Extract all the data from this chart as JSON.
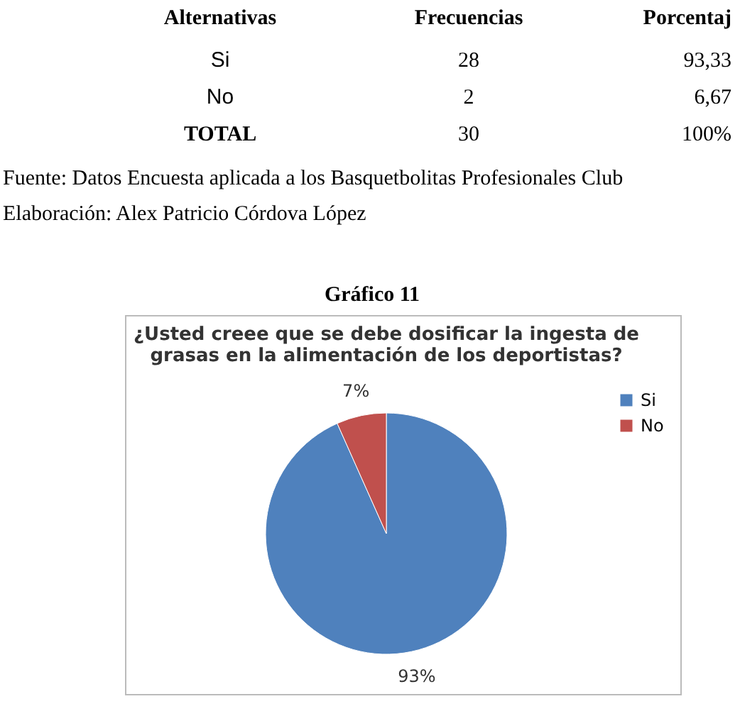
{
  "chart_data": [
    {
      "type": "other",
      "annotations": [
        "Alternativas",
        "Frecuencias",
        "Porcentaj",
        "Si",
        "28",
        "93,33",
        "No",
        "2",
        "6,67",
        "TOTAL",
        "30",
        "100%",
        "Fuente: Datos Encuesta aplicada a los Basquetbolitas Profesionales Club",
        "Elaboración: Alex Patricio Córdova López",
        "Gráfico 11"
      ]
    },
    {
      "type": "pie",
      "title": "¿Usted creee que se debe dosificar la ingesta de grasas en la alimentación de los deportistas?",
      "categories": [
        "Si",
        "No"
      ],
      "values": [
        93.33,
        6.67
      ],
      "colors": [
        "#4f81bd",
        "#c0504d"
      ],
      "value_labels": [
        "93%",
        "7%"
      ],
      "legend": "right"
    }
  ]
}
